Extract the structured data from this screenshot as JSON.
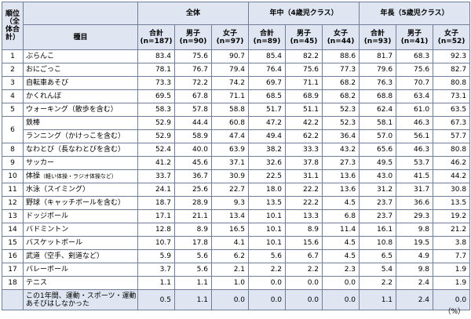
{
  "header": {
    "rank_label": "順位（全体合計）",
    "item_label": "種目",
    "groups": [
      "全体",
      "年中（4歳児クラス）",
      "年長（5歳児クラス）"
    ],
    "subcols": [
      {
        "top": "合計",
        "bottom": "(n=187)"
      },
      {
        "top": "男子",
        "bottom": "(n=90)"
      },
      {
        "top": "女子",
        "bottom": "(n=97)"
      },
      {
        "top": "合計",
        "bottom": "(n=89)"
      },
      {
        "top": "男子",
        "bottom": "(n=45)"
      },
      {
        "top": "女子",
        "bottom": "(n=44)"
      },
      {
        "top": "合計",
        "bottom": "(n=93)"
      },
      {
        "top": "男子",
        "bottom": "(n=41)"
      },
      {
        "top": "女子",
        "bottom": "(n=52)"
      }
    ]
  },
  "rows": [
    {
      "rank": "1",
      "item": "ぶらんこ",
      "item_note": "",
      "values": [
        "83.4",
        "75.6",
        "90.7",
        "85.4",
        "82.2",
        "88.6",
        "81.7",
        "68.3",
        "92.3"
      ]
    },
    {
      "rank": "2",
      "item": "おにごっこ",
      "item_note": "",
      "values": [
        "78.1",
        "76.7",
        "79.4",
        "76.4",
        "75.6",
        "77.3",
        "79.6",
        "75.6",
        "82.7"
      ]
    },
    {
      "rank": "3",
      "item": "自転車あそび",
      "item_note": "",
      "values": [
        "73.3",
        "72.2",
        "74.2",
        "69.7",
        "71.1",
        "68.2",
        "76.3",
        "70.7",
        "80.8"
      ]
    },
    {
      "rank": "4",
      "item": "かくれんぼ",
      "item_note": "",
      "values": [
        "69.5",
        "67.8",
        "71.1",
        "68.5",
        "68.9",
        "68.2",
        "68.8",
        "63.4",
        "73.1"
      ]
    },
    {
      "rank": "5",
      "item": "ウォーキング（散歩を含む）",
      "item_note": "",
      "values": [
        "58.3",
        "57.8",
        "58.8",
        "51.7",
        "51.1",
        "52.3",
        "62.4",
        "61.0",
        "63.5"
      ]
    },
    {
      "rank": "6",
      "item": "鉄棒",
      "item_note": "",
      "values": [
        "52.9",
        "44.4",
        "60.8",
        "47.2",
        "42.2",
        "52.3",
        "58.1",
        "46.3",
        "67.3"
      ]
    },
    {
      "rank": "",
      "item": "ランニング（かけっこを含む）",
      "item_note": "",
      "values": [
        "52.9",
        "58.9",
        "47.4",
        "49.4",
        "62.2",
        "36.4",
        "57.0",
        "56.1",
        "57.7"
      ]
    },
    {
      "rank": "8",
      "item": "なわとび（長なわとびを含む）",
      "item_note": "",
      "values": [
        "52.4",
        "40.0",
        "63.9",
        "38.2",
        "33.3",
        "43.2",
        "65.6",
        "46.3",
        "80.8"
      ]
    },
    {
      "rank": "9",
      "item": "サッカー",
      "item_note": "",
      "values": [
        "41.2",
        "45.6",
        "37.1",
        "32.6",
        "37.8",
        "27.3",
        "49.5",
        "53.7",
        "46.2"
      ]
    },
    {
      "rank": "10",
      "item": "体操",
      "item_note": "（軽い体操・ラジオ体操など）",
      "values": [
        "33.7",
        "36.7",
        "30.9",
        "22.5",
        "31.1",
        "13.6",
        "43.0",
        "41.5",
        "44.2"
      ]
    },
    {
      "rank": "11",
      "item": "水泳（スイミング）",
      "item_note": "",
      "values": [
        "24.1",
        "25.6",
        "22.7",
        "18.0",
        "22.2",
        "13.6",
        "31.2",
        "31.7",
        "30.8"
      ]
    },
    {
      "rank": "12",
      "item": "野球（キャッチボールを含む）",
      "item_note": "",
      "values": [
        "18.7",
        "28.9",
        "9.3",
        "13.5",
        "22.2",
        "4.5",
        "23.7",
        "36.6",
        "13.5"
      ]
    },
    {
      "rank": "13",
      "item": "ドッジボール",
      "item_note": "",
      "values": [
        "17.1",
        "21.1",
        "13.4",
        "10.1",
        "13.3",
        "6.8",
        "23.7",
        "29.3",
        "19.2"
      ]
    },
    {
      "rank": "14",
      "item": "バドミントン",
      "item_note": "",
      "values": [
        "12.8",
        "8.9",
        "16.5",
        "10.1",
        "8.9",
        "11.4",
        "16.1",
        "9.8",
        "21.2"
      ]
    },
    {
      "rank": "15",
      "item": "バスケットボール",
      "item_note": "",
      "values": [
        "10.7",
        "17.8",
        "4.1",
        "10.1",
        "15.6",
        "4.5",
        "10.8",
        "19.5",
        "3.8"
      ]
    },
    {
      "rank": "16",
      "item": "武道（空手、剣道など）",
      "item_note": "",
      "values": [
        "5.9",
        "5.6",
        "6.2",
        "5.6",
        "6.7",
        "4.5",
        "6.5",
        "4.9",
        "7.7"
      ]
    },
    {
      "rank": "17",
      "item": "バレーボール",
      "item_note": "",
      "values": [
        "3.7",
        "5.6",
        "2.1",
        "2.2",
        "2.2",
        "2.3",
        "5.4",
        "9.8",
        "1.9"
      ]
    },
    {
      "rank": "18",
      "item": "テニス",
      "item_note": "",
      "values": [
        "1.1",
        "1.1",
        "1.0",
        "0.0",
        "0.0",
        "0.0",
        "2.2",
        "2.4",
        "1.9"
      ]
    }
  ],
  "last_row": {
    "item": "この1年間、運動・スポーツ・運動あそびはしなかった",
    "values": [
      "0.5",
      "1.1",
      "0.0",
      "0.0",
      "0.0",
      "0.0",
      "1.1",
      "2.4",
      "0.0"
    ]
  },
  "unit": "（%）",
  "colors": {
    "header_bg": "#dfe6f1",
    "border": "#6f7f99"
  }
}
